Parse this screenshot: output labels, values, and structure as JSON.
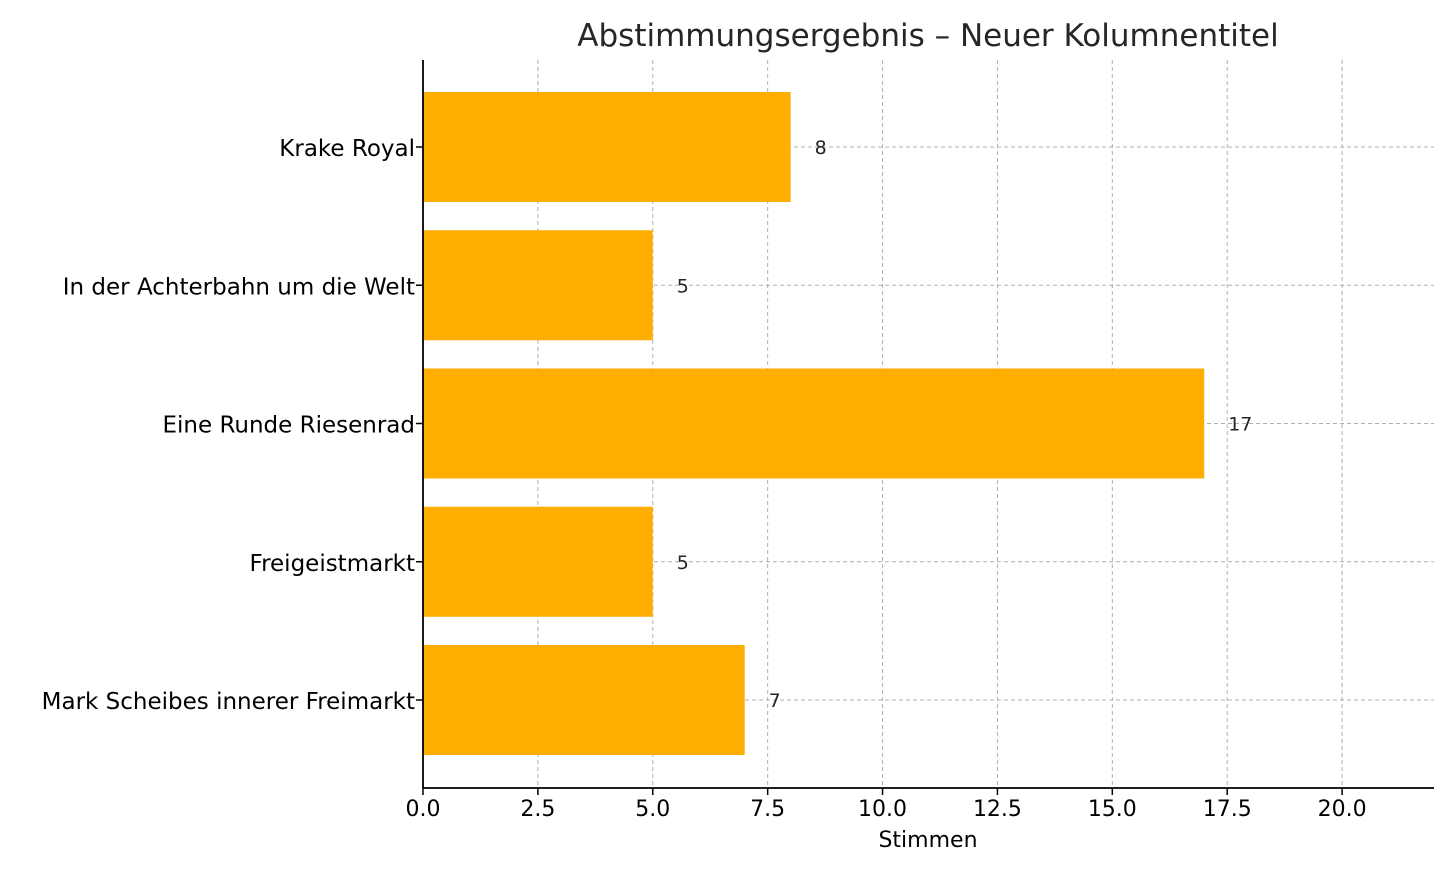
{
  "chart_data": {
    "type": "bar",
    "orientation": "horizontal",
    "title": "Abstimmungsergebnis – Neuer Kolumnentitel",
    "xlabel": "Stimmen",
    "ylabel": "",
    "categories": [
      "Krake Royal",
      "In der Achterbahn um die Welt",
      "Eine Runde Riesenrad",
      "Freigeistmarkt",
      "Mark Scheibes innerer Freimarkt"
    ],
    "values": [
      8,
      5,
      17,
      5,
      7
    ],
    "xlim": [
      0,
      22
    ],
    "xticks": [
      "0.0",
      "2.5",
      "5.0",
      "7.5",
      "10.0",
      "12.5",
      "15.0",
      "17.5",
      "20.0"
    ],
    "grid": true,
    "bar_color": "#FFAE00",
    "data_labels": true
  }
}
